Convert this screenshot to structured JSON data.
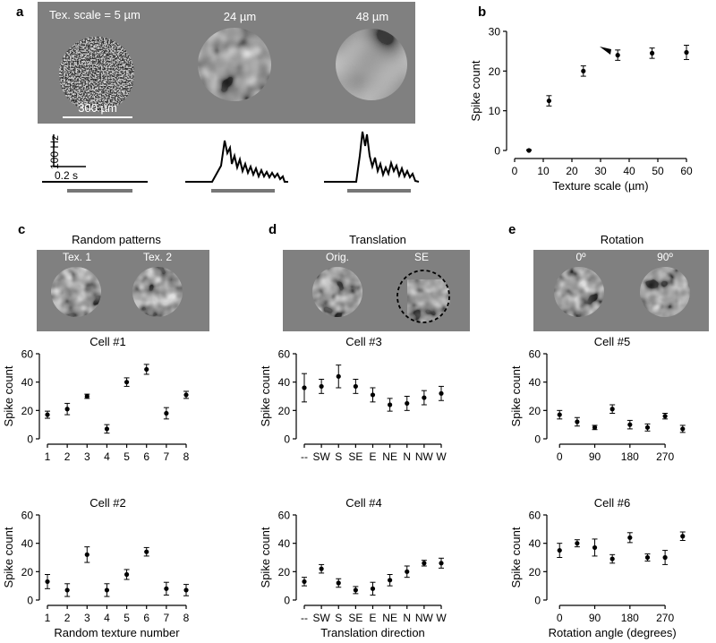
{
  "panels": {
    "a": {
      "label": "a",
      "stim_labels": [
        "Tex. scale = 5 µm",
        "24 µm",
        "48 µm"
      ],
      "scalebar_label": "300 µm",
      "psth_scale_y": "100 Hz",
      "psth_scale_x": "0.2 s"
    },
    "b": {
      "label": "b"
    },
    "c": {
      "label": "c",
      "title": "Random patterns",
      "stim_labels": [
        "Tex. 1",
        "Tex. 2"
      ]
    },
    "d": {
      "label": "d",
      "title": "Translation",
      "stim_labels": [
        "Orig.",
        "SE"
      ]
    },
    "e": {
      "label": "e",
      "title": "Rotation",
      "stim_labels": [
        "0º",
        "90º"
      ]
    }
  },
  "colors": {
    "stim_bg": "#808080",
    "stim_bar": "#7a7a7a",
    "ink": "#000000"
  },
  "chart_data": [
    {
      "id": "b",
      "type": "scatter",
      "xlabel": "Texture scale (µm)",
      "ylabel": "Spike count",
      "xlim": [
        0,
        60
      ],
      "ylim": [
        0,
        30
      ],
      "xticks": [
        0,
        10,
        20,
        30,
        40,
        50,
        60
      ],
      "yticks": [
        0,
        10,
        20,
        30
      ],
      "x": [
        5,
        12,
        24,
        36,
        48,
        60
      ],
      "y": [
        0,
        12.5,
        20,
        24,
        24.5,
        24.7
      ],
      "err": [
        0.2,
        1.3,
        1.3,
        1.3,
        1.3,
        1.8
      ],
      "annotation": "arrowhead at 36 µm"
    },
    {
      "id": "c1",
      "type": "scatter",
      "title": "Cell #1",
      "ylabel": "Spike count",
      "xlabel": "",
      "categories": [
        "1",
        "2",
        "3",
        "4",
        "5",
        "6",
        "7",
        "8"
      ],
      "y": [
        17,
        21,
        30,
        7,
        40,
        49,
        18,
        31
      ],
      "err": [
        2.5,
        4,
        1.5,
        3,
        3,
        3.5,
        4,
        2.5
      ],
      "ylim": [
        0,
        60
      ],
      "yticks": [
        0,
        20,
        40,
        60
      ]
    },
    {
      "id": "c2",
      "type": "scatter",
      "title": "Cell #2",
      "ylabel": "Spike count",
      "xlabel": "Random texture number",
      "categories": [
        "1",
        "2",
        "3",
        "4",
        "5",
        "6",
        "7",
        "8"
      ],
      "y": [
        13,
        7,
        32,
        7,
        18,
        34,
        8,
        7
      ],
      "err": [
        5,
        4.5,
        5.5,
        4.5,
        3.5,
        3,
        4.5,
        4
      ],
      "ylim": [
        0,
        60
      ],
      "yticks": [
        0,
        20,
        40,
        60
      ]
    },
    {
      "id": "d3",
      "type": "scatter",
      "title": "Cell #3",
      "ylabel": "Spike count",
      "xlabel": "",
      "categories": [
        "--",
        "SW",
        "S",
        "SE",
        "E",
        "NE",
        "N",
        "NW",
        "W"
      ],
      "y": [
        36,
        37,
        44,
        37,
        31,
        24,
        25,
        29,
        32
      ],
      "err": [
        10,
        5,
        8,
        5,
        5,
        4.5,
        5,
        5,
        5
      ],
      "ylim": [
        0,
        60
      ],
      "yticks": [
        0,
        20,
        40,
        60
      ]
    },
    {
      "id": "d4",
      "type": "scatter",
      "title": "Cell #4",
      "ylabel": "Spike count",
      "xlabel": "Translation direction",
      "categories": [
        "--",
        "SW",
        "S",
        "SE",
        "E",
        "NE",
        "N",
        "NW",
        "W"
      ],
      "y": [
        13,
        22,
        12,
        7,
        8,
        14,
        20,
        26,
        26
      ],
      "err": [
        3,
        3,
        3,
        2.5,
        4.5,
        4,
        4,
        2,
        3.5
      ],
      "ylim": [
        0,
        60
      ],
      "yticks": [
        0,
        20,
        40,
        60
      ]
    },
    {
      "id": "e5",
      "type": "scatter",
      "title": "Cell #5",
      "ylabel": "Spike count",
      "xlabel": "",
      "x": [
        0,
        45,
        90,
        135,
        180,
        225,
        270,
        315
      ],
      "y": [
        17,
        12,
        8,
        21,
        10,
        8,
        16,
        7
      ],
      "err": [
        3,
        3,
        1.5,
        3,
        3,
        2.5,
        2,
        2.5
      ],
      "xlim": [
        -12,
        327
      ],
      "xticks": [
        0,
        90,
        180,
        270
      ],
      "ylim": [
        0,
        60
      ],
      "yticks": [
        0,
        20,
        40,
        60
      ]
    },
    {
      "id": "e6",
      "type": "scatter",
      "title": "Cell #6",
      "ylabel": "Spike count",
      "xlabel": "Rotation angle (degrees)",
      "x": [
        0,
        45,
        90,
        135,
        180,
        225,
        270,
        315
      ],
      "y": [
        35,
        40,
        37,
        29,
        44,
        30,
        30,
        45
      ],
      "err": [
        5,
        2.5,
        6,
        3,
        3.5,
        2.5,
        5,
        3
      ],
      "xlim": [
        -12,
        327
      ],
      "xticks": [
        0,
        90,
        180,
        270
      ],
      "ylim": [
        0,
        60
      ],
      "yticks": [
        0,
        20,
        40,
        60
      ]
    }
  ]
}
